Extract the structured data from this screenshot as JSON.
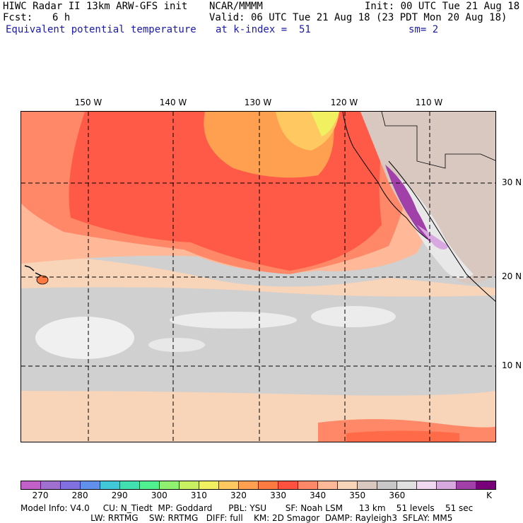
{
  "header": {
    "model_line": "HIWC Radar II 13km ARW-GFS init",
    "org": "NCAR/MMMM",
    "init": "Init: 00 UTC Tue 21 Aug 18",
    "fcst_label": "Fcst:",
    "fcst_value": "6 h",
    "valid": "Valid: 06 UTC Tue 21 Aug 18 (23 PDT Mon 20 Aug 18)",
    "field": "Equivalent potential temperature",
    "level": "at k-index =  51",
    "smoothing": "sm= 2"
  },
  "map": {
    "lon_labels": [
      "150 W",
      "140 W",
      "130 W",
      "120 W",
      "110 W"
    ],
    "lat_labels": [
      "30 N",
      "20 N",
      "10 N"
    ]
  },
  "colorbar": {
    "colors": [
      "#c060c8",
      "#a070d0",
      "#8070e0",
      "#6090ec",
      "#40c8d8",
      "#40e0b0",
      "#50f090",
      "#90f070",
      "#c8f060",
      "#f0f060",
      "#ffc860",
      "#ffa050",
      "#ff7a40",
      "#ff5040",
      "#ff8868",
      "#ffb898",
      "#f8d4b8",
      "#d8c8c0",
      "#c8c8c8",
      "#e0e0e0",
      "#f0d8f0",
      "#d8a8e0",
      "#a040a8",
      "#780078"
    ],
    "labels": [
      "270",
      "280",
      "290",
      "300",
      "310",
      "320",
      "330",
      "340",
      "350",
      "360"
    ],
    "unit": "K"
  },
  "footer": {
    "line1": "Model Info: V4.0     CU: N_Tiedt  MP: Goddard      PBL: YSU       SF: Noah LSM      13 km    51 levels    51 sec",
    "line2": "                          LW: RRTMG    SW: RRTMG   DIFF: full    KM: 2D Smagor  DAMP: Rayleigh3  SFLAY: MM5"
  }
}
